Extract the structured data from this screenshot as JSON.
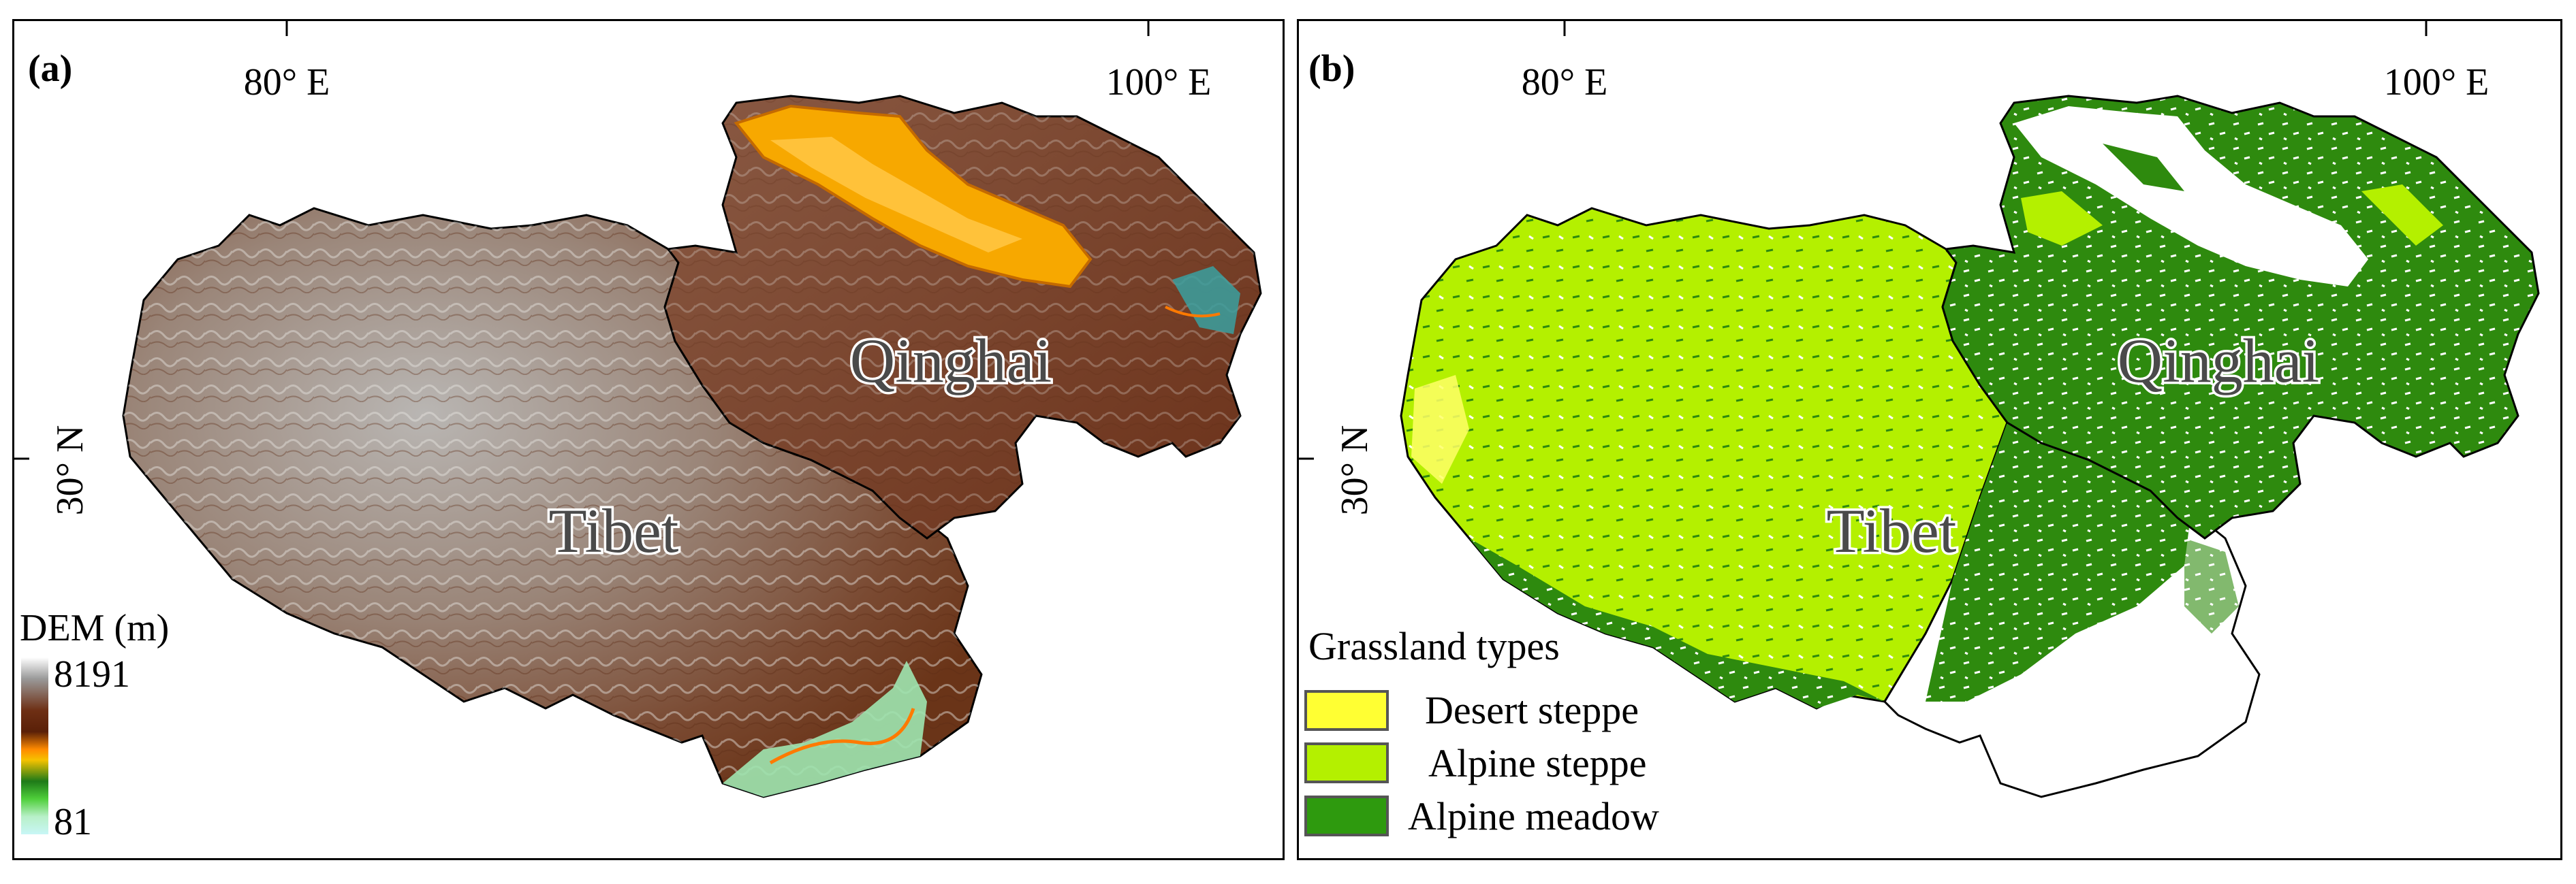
{
  "panel_a": {
    "label": "(a)",
    "lon_labels": [
      "80° E",
      "100° E"
    ],
    "lat_label": "30° N",
    "regions": [
      "Qinghai",
      "Tibet"
    ],
    "legend": {
      "title": "DEM (m)",
      "max": "8191",
      "min": "81",
      "ramp": [
        "#ffffff",
        "#9a9a9a",
        "#6e2f14",
        "#5a2008",
        "#ff8a00",
        "#f6c200",
        "#1e7a18",
        "#4fcf3a",
        "#b8f0c8",
        "#c8f6f6"
      ]
    }
  },
  "panel_b": {
    "label": "(b)",
    "lon_labels": [
      "80° E",
      "100° E"
    ],
    "lat_label": "30° N",
    "regions": [
      "Qinghai",
      "Tibet"
    ],
    "legend": {
      "title": "Grassland  types",
      "items": [
        {
          "label": "Desert steppe",
          "color": "#ffff33"
        },
        {
          "label": "Alpine steppe",
          "color": "#b4f000"
        },
        {
          "label": "Alpine meadow",
          "color": "#2e9a0e"
        }
      ]
    }
  }
}
